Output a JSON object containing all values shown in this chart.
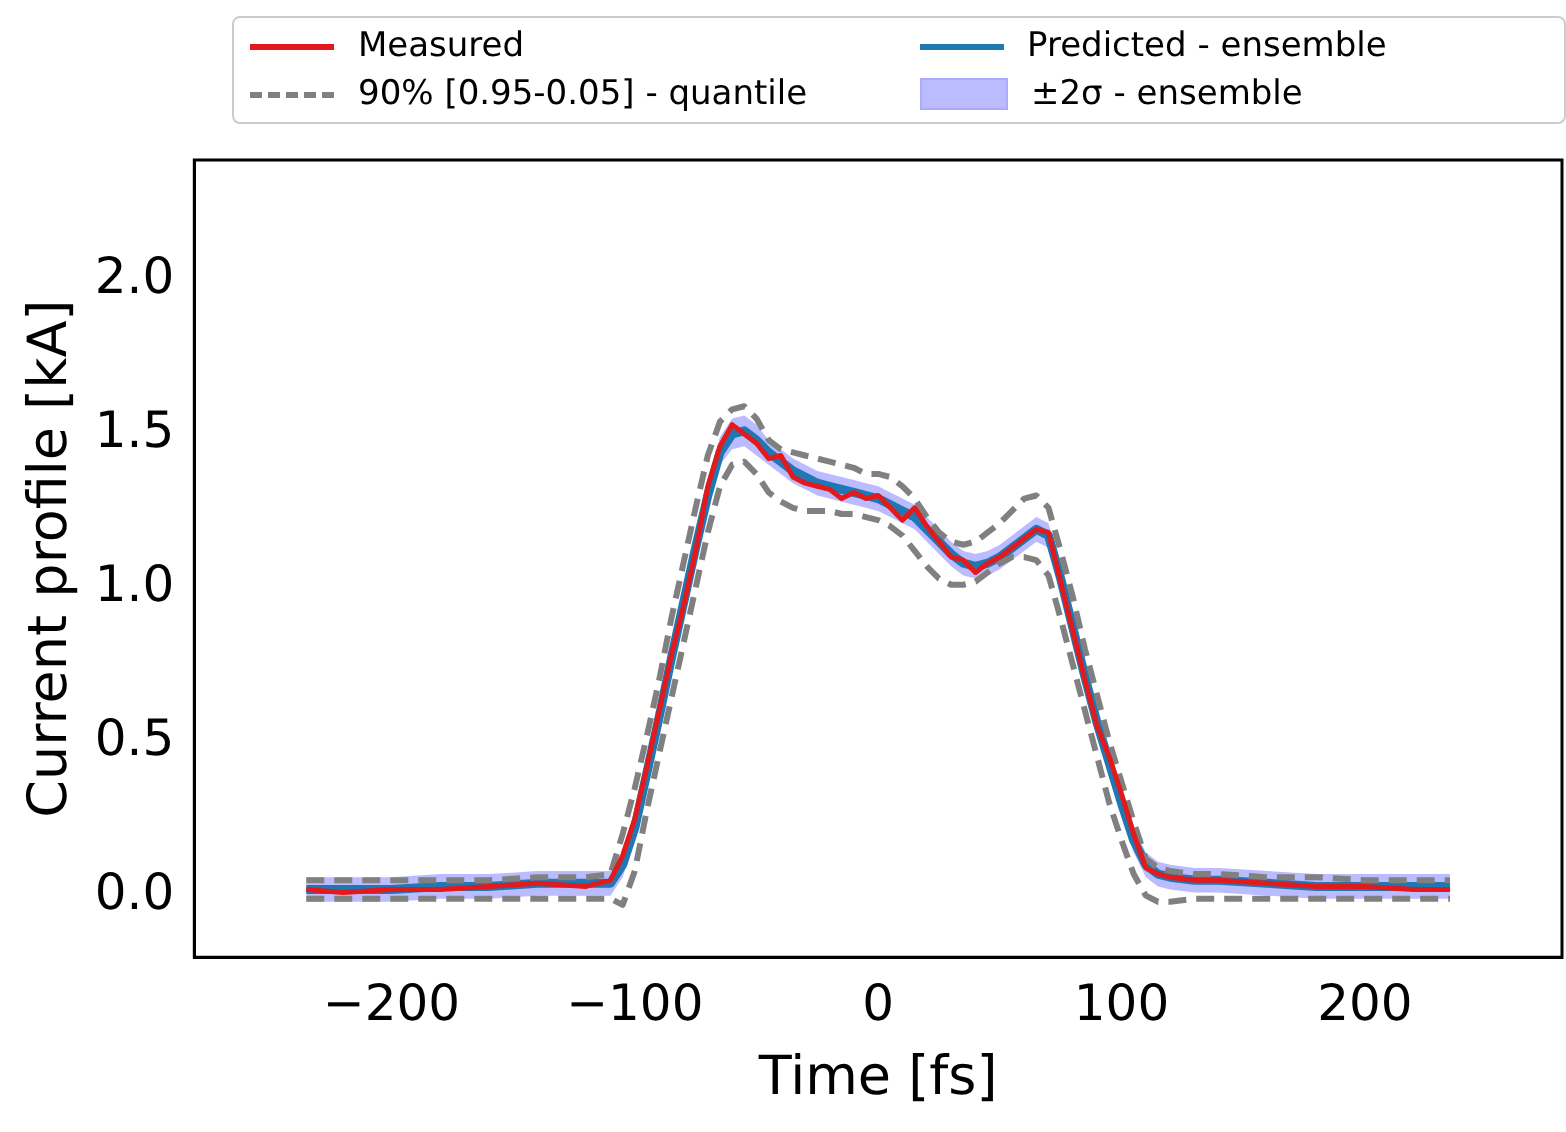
{
  "chart_data": {
    "type": "line",
    "xlabel": "Time [fs]",
    "ylabel": "Current profile [kA]",
    "xlim": [
      -281,
      281
    ],
    "xticks": [
      {
        "value": -200,
        "label": "−200"
      },
      {
        "value": -100,
        "label": "−100"
      },
      0,
      100,
      200
    ],
    "ylim": [
      -0.2,
      2.39
    ],
    "yticks": [
      {
        "value": 0,
        "label": "0.0"
      },
      {
        "value": 0.5,
        "label": "0.5"
      },
      {
        "value": 1,
        "label": "1.0"
      },
      {
        "value": 1.5,
        "label": "1.5"
      },
      {
        "value": 2,
        "label": "2.0"
      }
    ],
    "legend": "top",
    "annotations": [
      "±2σ - ensemble"
    ],
    "x": [
      -235,
      -220,
      -200,
      -180,
      -160,
      -140,
      -120,
      -110,
      -105,
      -100,
      -95,
      -90,
      -85,
      -80,
      -75,
      -70,
      -65,
      -60,
      -55,
      -50,
      -45,
      -40,
      -35,
      -30,
      -25,
      -20,
      -15,
      -10,
      -5,
      0,
      5,
      10,
      15,
      20,
      25,
      30,
      35,
      40,
      45,
      50,
      55,
      60,
      65,
      70,
      75,
      80,
      85,
      90,
      95,
      100,
      105,
      110,
      115,
      120,
      130,
      140,
      160,
      180,
      200,
      220,
      235
    ],
    "series": [
      {
        "name": "Measured",
        "type": "line",
        "color": "#e31a1c",
        "line_style": "solid",
        "values": [
          0.02,
          0.01,
          0.02,
          0.02,
          0.03,
          0.04,
          0.03,
          0.05,
          0.13,
          0.25,
          0.42,
          0.6,
          0.78,
          0.94,
          1.12,
          1.33,
          1.46,
          1.53,
          1.5,
          1.47,
          1.42,
          1.43,
          1.36,
          1.34,
          1.33,
          1.32,
          1.29,
          1.31,
          1.29,
          1.3,
          1.26,
          1.22,
          1.26,
          1.2,
          1.15,
          1.1,
          1.09,
          1.05,
          1.08,
          1.1,
          1.13,
          1.16,
          1.19,
          1.18,
          1.02,
          0.86,
          0.7,
          0.55,
          0.45,
          0.33,
          0.2,
          0.09,
          0.07,
          0.06,
          0.05,
          0.05,
          0.04,
          0.03,
          0.03,
          0.02,
          0.02
        ]
      },
      {
        "name": "Predicted - ensemble",
        "type": "line",
        "color": "#1f77b4",
        "line_style": "solid",
        "values": [
          0.02,
          0.02,
          0.02,
          0.03,
          0.03,
          0.04,
          0.04,
          0.04,
          0.1,
          0.22,
          0.4,
          0.58,
          0.77,
          0.95,
          1.13,
          1.3,
          1.44,
          1.5,
          1.51,
          1.48,
          1.44,
          1.41,
          1.38,
          1.36,
          1.34,
          1.33,
          1.32,
          1.31,
          1.3,
          1.29,
          1.27,
          1.25,
          1.23,
          1.19,
          1.15,
          1.11,
          1.08,
          1.07,
          1.08,
          1.1,
          1.13,
          1.16,
          1.19,
          1.17,
          1.03,
          0.87,
          0.71,
          0.56,
          0.43,
          0.3,
          0.18,
          0.1,
          0.07,
          0.06,
          0.05,
          0.05,
          0.04,
          0.03,
          0.03,
          0.03,
          0.03
        ],
        "lower": [
          -0.02,
          -0.02,
          -0.02,
          -0.01,
          -0.01,
          0,
          0,
          0,
          0.06,
          0.18,
          0.36,
          0.54,
          0.73,
          0.91,
          1.09,
          1.26,
          1.4,
          1.45,
          1.46,
          1.43,
          1.4,
          1.37,
          1.34,
          1.32,
          1.3,
          1.29,
          1.28,
          1.27,
          1.26,
          1.25,
          1.23,
          1.21,
          1.19,
          1.15,
          1.11,
          1.07,
          1.04,
          1.03,
          1.04,
          1.06,
          1.09,
          1.12,
          1.15,
          1.13,
          0.99,
          0.83,
          0.67,
          0.52,
          0.39,
          0.26,
          0.14,
          0.06,
          0.03,
          0.02,
          0.01,
          0.01,
          0,
          -0.01,
          -0.01,
          -0.01,
          -0.01
        ],
        "upper": [
          0.06,
          0.06,
          0.06,
          0.07,
          0.07,
          0.08,
          0.08,
          0.08,
          0.14,
          0.26,
          0.44,
          0.62,
          0.81,
          0.99,
          1.17,
          1.34,
          1.49,
          1.55,
          1.56,
          1.53,
          1.48,
          1.45,
          1.42,
          1.4,
          1.38,
          1.37,
          1.36,
          1.35,
          1.34,
          1.33,
          1.31,
          1.29,
          1.27,
          1.23,
          1.19,
          1.15,
          1.12,
          1.11,
          1.12,
          1.14,
          1.17,
          1.2,
          1.23,
          1.21,
          1.07,
          0.91,
          0.75,
          0.6,
          0.47,
          0.34,
          0.22,
          0.14,
          0.11,
          0.1,
          0.09,
          0.09,
          0.08,
          0.07,
          0.07,
          0.07,
          0.07
        ]
      },
      {
        "name": "90% [0.95-0.05] - quantile",
        "type": "line",
        "color": "#808080",
        "line_style": "dashed",
        "values": [
          0.05,
          0.05,
          0.05,
          0.05,
          0.05,
          0.06,
          0.06,
          0.07,
          0.2,
          0.35,
          0.52,
          0.7,
          0.9,
          1.08,
          1.26,
          1.43,
          1.54,
          1.58,
          1.59,
          1.55,
          1.48,
          1.45,
          1.44,
          1.43,
          1.42,
          1.41,
          1.4,
          1.39,
          1.37,
          1.37,
          1.36,
          1.33,
          1.29,
          1.23,
          1.18,
          1.15,
          1.14,
          1.15,
          1.18,
          1.21,
          1.25,
          1.29,
          1.3,
          1.26,
          1.12,
          0.97,
          0.8,
          0.65,
          0.5,
          0.37,
          0.24,
          0.12,
          0.09,
          0.08,
          0.07,
          0.07,
          0.06,
          0.06,
          0.05,
          0.05,
          0.05
        ]
      },
      {
        "type": "line",
        "color": "#808080",
        "line_style": "dashed",
        "values": [
          -0.01,
          -0.01,
          -0.01,
          -0.01,
          -0.01,
          -0.01,
          -0.01,
          -0.01,
          -0.03,
          0.08,
          0.28,
          0.46,
          0.64,
          0.82,
          1.0,
          1.18,
          1.33,
          1.4,
          1.41,
          1.37,
          1.31,
          1.28,
          1.26,
          1.25,
          1.25,
          1.25,
          1.24,
          1.24,
          1.23,
          1.22,
          1.2,
          1.17,
          1.12,
          1.07,
          1.03,
          1.01,
          1.01,
          1.02,
          1.05,
          1.08,
          1.1,
          1.1,
          1.09,
          1.04,
          0.9,
          0.75,
          0.6,
          0.45,
          0.3,
          0.18,
          0.07,
          0,
          -0.02,
          -0.02,
          -0.01,
          -0.01,
          -0.01,
          -0.01,
          -0.01,
          -0.01,
          -0.01
        ]
      }
    ]
  }
}
